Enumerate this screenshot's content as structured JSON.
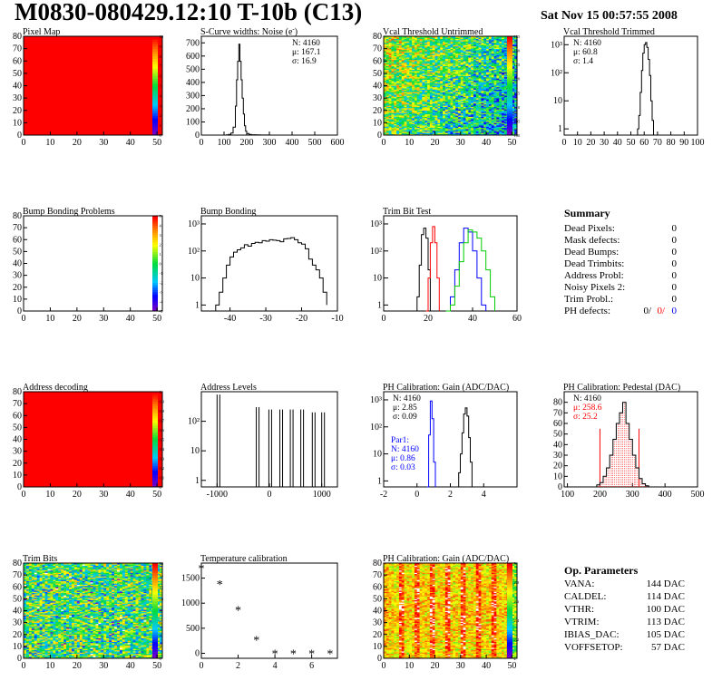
{
  "header": {
    "title": "M0830-080429.12:10 T-10b (C13)",
    "date": "Sat Nov 15 00:57:55 2008"
  },
  "panels": [
    {
      "key": "pixel_map",
      "title": "Pixel Map",
      "chart_data": {
        "type": "heatmap",
        "xlim": [
          0,
          52
        ],
        "ylim": [
          0,
          80
        ],
        "x_ticks": [
          "0",
          "10",
          "20",
          "30",
          "40",
          "50"
        ],
        "y_ticks": [
          "0",
          "10",
          "20",
          "30",
          "40",
          "50",
          "60",
          "70",
          "80"
        ],
        "fill": "uniform",
        "fill_color": "#ff0000",
        "color_scale": [
          "0",
          "1",
          "2",
          "3",
          "4",
          "5",
          "6",
          "7",
          "8",
          "9",
          "10"
        ]
      }
    },
    {
      "key": "noise",
      "title": "S-Curve widths: Noise (e",
      "title_sup": "-",
      "title_end": ")",
      "chart_data": {
        "type": "histogram",
        "xlim": [
          0,
          600
        ],
        "ylim": [
          0,
          750
        ],
        "x_ticks": [
          "0",
          "100",
          "200",
          "300",
          "400",
          "500",
          "600"
        ],
        "y_ticks": [
          "0",
          "100",
          "200",
          "300",
          "400",
          "500",
          "600",
          "700"
        ],
        "x": [
          100,
          110,
          120,
          130,
          140,
          150,
          155,
          160,
          165,
          170,
          175,
          180,
          185,
          190,
          195,
          200,
          210,
          220,
          240,
          260,
          280,
          300
        ],
        "values": [
          0,
          2,
          5,
          15,
          60,
          220,
          420,
          560,
          690,
          560,
          420,
          280,
          160,
          70,
          30,
          12,
          5,
          3,
          2,
          1,
          1,
          0
        ]
      },
      "stats": [
        "N: 4160",
        "μ: 167.1",
        "σ: 16.9"
      ]
    },
    {
      "key": "vcal_untrimmed",
      "title": "Vcal Threshold Untrimmed",
      "chart_data": {
        "type": "heatmap",
        "xlim": [
          0,
          52
        ],
        "ylim": [
          0,
          80
        ],
        "x_ticks": [
          "0",
          "10",
          "20",
          "30",
          "40",
          "50"
        ],
        "y_ticks": [
          "0",
          "10",
          "20",
          "30",
          "40",
          "50",
          "60",
          "70",
          "80"
        ],
        "fill": "noise",
        "color_scale": [
          "100",
          "105",
          "110",
          "115",
          "120",
          "125",
          "130",
          "135"
        ]
      }
    },
    {
      "key": "vcal_trimmed",
      "title": "Vcal Threshold Trimmed",
      "chart_data": {
        "type": "histogram",
        "log_y": true,
        "xlim": [
          0,
          100
        ],
        "ylim": [
          0.6,
          2000
        ],
        "x_ticks": [
          "0",
          "10",
          "20",
          "30",
          "40",
          "50",
          "60",
          "70",
          "80",
          "90",
          "100"
        ],
        "y_ticks": [
          {
            "v": 1,
            "label": "1"
          },
          {
            "v": 10,
            "label": "10"
          },
          {
            "v": 100,
            "label": "10²"
          },
          {
            "v": 1000,
            "label": "10³"
          }
        ],
        "x": [
          54,
          55,
          56,
          57,
          58,
          59,
          60,
          61,
          62,
          63,
          64,
          65,
          66,
          67
        ],
        "values": [
          0,
          1,
          3,
          20,
          120,
          500,
          1000,
          1200,
          800,
          300,
          80,
          10,
          2,
          0
        ]
      },
      "stats": [
        "N: 4160",
        "μ: 60.8",
        "σ: 1.4"
      ]
    },
    {
      "key": "bump_problems",
      "title": "Bump Bonding Problems",
      "chart_data": {
        "type": "heatmap",
        "xlim": [
          0,
          52
        ],
        "ylim": [
          0,
          80
        ],
        "x_ticks": [
          "0",
          "10",
          "20",
          "30",
          "40",
          "50"
        ],
        "y_ticks": [
          "0",
          "10",
          "20",
          "30",
          "40",
          "50",
          "60",
          "70",
          "80"
        ],
        "fill": "empty",
        "color_scale": [
          "-5",
          "-4",
          "-3",
          "-2",
          "-1",
          "0",
          "1",
          "2",
          "3",
          "4",
          "5"
        ]
      }
    },
    {
      "key": "bump_bonding",
      "title": "Bump Bonding",
      "chart_data": {
        "type": "histogram",
        "log_y": true,
        "xlim": [
          -48,
          -10
        ],
        "ylim": [
          0.6,
          2000
        ],
        "x_ticks": [
          "-40",
          "-30",
          "-20",
          "-10"
        ],
        "x_tick_values": [
          -40,
          -30,
          -20,
          -10
        ],
        "y_ticks": [
          {
            "v": 1,
            "label": "1"
          },
          {
            "v": 10,
            "label": "10"
          },
          {
            "v": 100,
            "label": "10²"
          },
          {
            "v": 1000,
            "label": "10³"
          }
        ],
        "x": [
          -45,
          -44,
          -43,
          -42,
          -41,
          -40,
          -39,
          -38,
          -37,
          -36,
          -35,
          -34,
          -33,
          -32,
          -31,
          -30,
          -29,
          -28,
          -27,
          -26,
          -25,
          -24,
          -23,
          -22,
          -21,
          -20,
          -19,
          -18,
          -17,
          -16,
          -15,
          -14,
          -13
        ],
        "values": [
          0.5,
          1,
          3,
          10,
          30,
          60,
          90,
          110,
          130,
          170,
          150,
          190,
          210,
          200,
          240,
          230,
          260,
          250,
          240,
          220,
          280,
          290,
          310,
          260,
          200,
          180,
          120,
          50,
          30,
          20,
          10,
          3,
          1
        ]
      }
    },
    {
      "key": "trim_bit_test",
      "title": "Trim Bit Test",
      "chart_data": {
        "type": "histogram",
        "log_y": true,
        "xlim": [
          0,
          60
        ],
        "ylim": [
          0.6,
          2000
        ],
        "x_ticks": [
          "0",
          "20",
          "40",
          "60"
        ],
        "x_tick_values": [
          0,
          20,
          40,
          60
        ],
        "y_ticks": [
          {
            "v": 1,
            "label": "1"
          },
          {
            "v": 10,
            "label": "10"
          },
          {
            "v": 100,
            "label": "10²"
          },
          {
            "v": 1000,
            "label": "10³"
          }
        ],
        "series": [
          {
            "color": "#000000",
            "x": [
              14,
              15,
              16,
              17,
              18,
              19,
              20,
              21
            ],
            "values": [
              0,
              2,
              30,
              400,
              700,
              300,
              20,
              0
            ]
          },
          {
            "color": "#ff0000",
            "x": [
              19,
              20,
              21,
              22,
              23,
              24,
              25
            ],
            "values": [
              0,
              10,
              200,
              800,
              200,
              10,
              0
            ]
          },
          {
            "color": "#0000ff",
            "x": [
              28,
              30,
              32,
              34,
              36,
              38,
              40,
              42,
              44,
              46
            ],
            "values": [
              0,
              2,
              20,
              200,
              700,
              500,
              100,
              10,
              1,
              0
            ]
          },
          {
            "color": "#00cc00",
            "x": [
              28,
              30,
              32,
              34,
              36,
              38,
              40,
              42,
              44,
              46,
              48,
              50
            ],
            "values": [
              0,
              1,
              5,
              40,
              200,
              600,
              500,
              300,
              100,
              20,
              2,
              0
            ]
          }
        ]
      }
    },
    {
      "key": "address_decoding",
      "title": "Address decoding",
      "chart_data": {
        "type": "heatmap",
        "xlim": [
          0,
          52
        ],
        "ylim": [
          0,
          80
        ],
        "x_ticks": [
          "0",
          "10",
          "20",
          "30",
          "40",
          "50"
        ],
        "y_ticks": [
          "0",
          "10",
          "20",
          "30",
          "40",
          "50",
          "60",
          "70",
          "80"
        ],
        "fill": "uniform",
        "fill_color": "#ff0000",
        "color_scale": [
          "0",
          "0.1",
          "0.2",
          "0.3",
          "0.4",
          "0.5",
          "0.6",
          "0.7",
          "0.8",
          "0.9",
          "1"
        ]
      }
    },
    {
      "key": "address_levels",
      "title": "Address Levels",
      "chart_data": {
        "type": "spikes",
        "log_y": true,
        "xlim": [
          -1300,
          1300
        ],
        "ylim": [
          0.6,
          1000
        ],
        "x_ticks": [
          "-1000",
          "0",
          "1000"
        ],
        "x_tick_values": [
          -1000,
          0,
          1000
        ],
        "y_ticks": [
          {
            "v": 1,
            "label": "1"
          },
          {
            "v": 10,
            "label": "10"
          },
          {
            "v": 100,
            "label": "10²"
          }
        ],
        "x": [
          -1000,
          -250,
          -10,
          200,
          400,
          600,
          820,
          1000
        ],
        "values": [
          800,
          300,
          250,
          250,
          250,
          250,
          200,
          200
        ]
      }
    },
    {
      "key": "ph_gain",
      "title": "PH Calibration: Gain (ADC/DAC)",
      "chart_data": {
        "type": "histogram",
        "log_y": true,
        "xlim": [
          -2,
          6
        ],
        "ylim": [
          0.6,
          2000
        ],
        "x_ticks": [
          "-2",
          "0",
          "2",
          "4"
        ],
        "x_tick_values": [
          -2,
          0,
          2,
          4
        ],
        "y_ticks": [
          {
            "v": 1,
            "label": "1"
          },
          {
            "v": 10,
            "label": "10"
          },
          {
            "v": 100,
            "label": "10²"
          },
          {
            "v": 1000,
            "label": "10³"
          }
        ],
        "series": [
          {
            "color": "#000000",
            "x": [
              2.4,
              2.5,
              2.6,
              2.7,
              2.8,
              2.9,
              3.0,
              3.1,
              3.2,
              3.3
            ],
            "values": [
              0,
              2,
              10,
              60,
              300,
              500,
              250,
              40,
              5,
              0
            ]
          },
          {
            "color": "#0000ff",
            "x": [
              0.6,
              0.7,
              0.8,
              0.9,
              1.0,
              1.1
            ],
            "values": [
              0,
              50,
              900,
              200,
              5,
              0
            ]
          }
        ]
      },
      "stats": [
        "N: 4160",
        "μ: 2.85",
        "σ: 0.09"
      ],
      "stats2": [
        "Par1:",
        "N: 4160",
        "μ: 0.86",
        "σ: 0.03"
      ]
    },
    {
      "key": "ph_pedestal",
      "title": "PH Calibration: Pedestal (DAC)",
      "chart_data": {
        "type": "histogram",
        "xlim": [
          90,
          500
        ],
        "ylim": [
          0,
          90
        ],
        "x_ticks": [
          "100",
          "200",
          "300",
          "400",
          "500"
        ],
        "x_tick_values": [
          100,
          200,
          300,
          400,
          500
        ],
        "y_ticks": [
          "0",
          "10",
          "20",
          "30",
          "40",
          "50",
          "60",
          "70",
          "80"
        ],
        "y_tick_values": [
          0,
          10,
          20,
          30,
          40,
          50,
          60,
          70,
          80
        ],
        "x": [
          180,
          190,
          200,
          210,
          220,
          230,
          240,
          250,
          260,
          270,
          280,
          290,
          300,
          310,
          320,
          330,
          340,
          350
        ],
        "values": [
          0,
          2,
          4,
          10,
          18,
          30,
          45,
          60,
          70,
          80,
          60,
          45,
          30,
          18,
          8,
          3,
          1,
          0
        ]
      },
      "stats": [
        "N: 4160",
        "μ: 258.6",
        "σ: 25.2"
      ]
    },
    {
      "key": "trim_bits",
      "title": "Trim Bits",
      "chart_data": {
        "type": "heatmap",
        "xlim": [
          0,
          52
        ],
        "ylim": [
          0,
          80
        ],
        "x_ticks": [
          "0",
          "10",
          "20",
          "30",
          "40",
          "50"
        ],
        "y_ticks": [
          "0",
          "10",
          "20",
          "30",
          "40",
          "50",
          "60",
          "70",
          "80"
        ],
        "fill": "noise2",
        "color_scale": [
          "0",
          "2",
          "4",
          "6",
          "8",
          "10",
          "12",
          "14",
          "16"
        ]
      }
    },
    {
      "key": "temperature",
      "title": "Temperature calibration",
      "chart_data": {
        "type": "scatter",
        "xlim": [
          0,
          7.4
        ],
        "ylim": [
          -100,
          1800
        ],
        "x_ticks": [
          "0",
          "2",
          "4",
          "6"
        ],
        "x_tick_values": [
          0,
          2,
          4,
          6
        ],
        "y_ticks": [
          "0",
          "500",
          "1000",
          "1500"
        ],
        "y_tick_values": [
          0,
          500,
          1000,
          1500
        ],
        "x": [
          0,
          1,
          2,
          3,
          4,
          5,
          6,
          7
        ],
        "values": [
          1700,
          1380,
          870,
          270,
          0,
          0,
          0,
          0
        ]
      }
    },
    {
      "key": "ph_gain_map",
      "title": "PH Calibration: Gain (ADC/DAC)",
      "chart_data": {
        "type": "heatmap",
        "xlim": [
          0,
          52
        ],
        "ylim": [
          0,
          80
        ],
        "x_ticks": [
          "0",
          "10",
          "20",
          "30",
          "40",
          "50"
        ],
        "y_ticks": [
          "0",
          "10",
          "20",
          "30",
          "40",
          "50",
          "60",
          "70",
          "80"
        ],
        "fill": "columns",
        "color_scale": [
          "2",
          "2.2",
          "2.4",
          "2.6",
          "2.8",
          "3"
        ]
      }
    }
  ],
  "summary": {
    "title": "Summary",
    "rows": [
      {
        "label": "Dead Pixels:",
        "value": "0"
      },
      {
        "label": "Mask defects:",
        "value": "0"
      },
      {
        "label": "Dead Bumps:",
        "value": "0"
      },
      {
        "label": "Dead Trimbits:",
        "value": "0"
      },
      {
        "label": "Address Probl:",
        "value": "0"
      },
      {
        "label": "Noisy Pixels 2:",
        "value": "0"
      },
      {
        "label": "Trim Probl.:",
        "value": "0"
      }
    ],
    "ph_label": "PH defects:",
    "ph_values": [
      {
        "value": "0/",
        "color": "#000000"
      },
      {
        "value": "0/",
        "color": "#ff0000"
      },
      {
        "value": "0",
        "color": "#0000ff"
      }
    ]
  },
  "op_parameters": {
    "title": "Op. Parameters",
    "rows": [
      {
        "label": "VANA:",
        "value": "144 DAC"
      },
      {
        "label": "CALDEL:",
        "value": "114 DAC"
      },
      {
        "label": "VTHR:",
        "value": "100 DAC"
      },
      {
        "label": "VTRIM:",
        "value": "113 DAC"
      },
      {
        "label": "IBIAS_DAC:",
        "value": "105 DAC"
      },
      {
        "label": "VOFFSETOP:",
        "value": "57 DAC"
      }
    ]
  }
}
